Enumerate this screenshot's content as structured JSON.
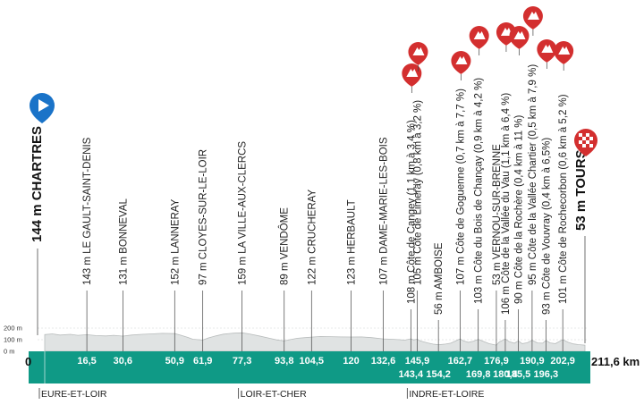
{
  "chart_data": {
    "type": "area",
    "total_distance_label": "211,6 km",
    "zero_label": "0",
    "elevation_ticks": [
      {
        "value": 200,
        "label": "200 m"
      },
      {
        "value": 100,
        "label": "100 m"
      },
      {
        "value": 0,
        "label": "0 m"
      }
    ],
    "distance_max": 211.6,
    "elevation_max": 200,
    "start": {
      "label": "144 m CHARTRES",
      "km": 0,
      "icon": "start-play-icon",
      "color": "#1a73c8"
    },
    "finish": {
      "label": "53 m TOURS",
      "km": 211.6,
      "icon": "finish-checkered-icon",
      "color": "#d32f2f"
    },
    "waypoints": [
      {
        "km": 16.5,
        "km_label": "16,5",
        "label": "143 m LE GAULT-SAINT-DENIS",
        "row": 0
      },
      {
        "km": 30.6,
        "km_label": "30,6",
        "label": "131 m BONNEVAL",
        "row": 0
      },
      {
        "km": 50.9,
        "km_label": "50,9",
        "label": "152 m LANNERAY",
        "row": 0
      },
      {
        "km": 61.9,
        "km_label": "61,9",
        "label": "97 m CLOYES-SUR-LE-LOIR",
        "row": 0
      },
      {
        "km": 77.3,
        "km_label": "77,3",
        "label": "159 m LA VILLE-AUX-CLERCS",
        "row": 0
      },
      {
        "km": 93.8,
        "km_label": "93,8",
        "label": "89 m VENDÔME",
        "row": 0
      },
      {
        "km": 104.5,
        "km_label": "104,5",
        "label": "122 m CRUCHERAY",
        "row": 0
      },
      {
        "km": 120,
        "km_label": "120",
        "label": "123 m HERBAULT",
        "row": 0
      },
      {
        "km": 132.6,
        "km_label": "132,6",
        "label": "107 m DAME-MARIE-LES-BOIS",
        "row": 0
      },
      {
        "km": 143.4,
        "km_label": "143,4",
        "label": "108 m Côte de Cangey (1,1 km à 3,4 %)",
        "row": 1,
        "climb": true
      },
      {
        "km": 145.9,
        "km_label": "145,9",
        "label": "105 m Côte de Limeray (0,8 km à 3,2 %)",
        "row": 0,
        "climb": true
      },
      {
        "km": 154.2,
        "km_label": "154,2",
        "label": "56 m AMBOISE",
        "row": 2
      },
      {
        "km": 162.7,
        "km_label": "162,7",
        "label": "107 m Côte de Goguenne (0,7 km à 7,7 %)",
        "row": 0,
        "climb": true
      },
      {
        "km": 169.8,
        "km_label": "169,8",
        "label": "103 m Côte du Bois de Chançay (0,9 km à 4,2 %)",
        "row": 1,
        "climb": true
      },
      {
        "km": 176.9,
        "km_label": "176,9",
        "label": "53 m VERNOU-SUR-BRENNE",
        "row": 0
      },
      {
        "km": 180.4,
        "km_label": "180,4",
        "label": "106 m Côte de la Vallée du Vau (1,1 km à 6,4 %)",
        "row": 2,
        "climb": true
      },
      {
        "km": 185.5,
        "km_label": "185,5",
        "label": "90 m Côte de la Rochère (0,4 km à 11 %)",
        "row": 1,
        "climb": true
      },
      {
        "km": 190.9,
        "km_label": "190,9",
        "label": "95 m Côte de la Vallée Chartier (0,5 km à 7,9 %)",
        "row": 0,
        "climb": true
      },
      {
        "km": 196.3,
        "km_label": "196,3",
        "label": "93 m Côte de Vouvray (0,4 km à 6,5%)",
        "row": 2,
        "climb": true
      },
      {
        "km": 202.9,
        "km_label": "202,9",
        "label": "101 m Côte de Rochecorbon (0,6 km à 5,2 %)",
        "row": 1,
        "climb": true
      }
    ],
    "regions": [
      {
        "km": 0,
        "label": "EURE-ET-LOIR"
      },
      {
        "km": 77.3,
        "label": "LOIR-ET-CHER"
      },
      {
        "km": 143.4,
        "label": "INDRE-ET-LOIRE"
      }
    ],
    "profile": [
      [
        0,
        144
      ],
      [
        3,
        150
      ],
      [
        6,
        140
      ],
      [
        10,
        146
      ],
      [
        13,
        138
      ],
      [
        16.5,
        143
      ],
      [
        20,
        135
      ],
      [
        24,
        132
      ],
      [
        27,
        138
      ],
      [
        30.6,
        131
      ],
      [
        34,
        140
      ],
      [
        38,
        146
      ],
      [
        42,
        150
      ],
      [
        46,
        155
      ],
      [
        50.9,
        152
      ],
      [
        53,
        140
      ],
      [
        56,
        120
      ],
      [
        58,
        104
      ],
      [
        61.9,
        97
      ],
      [
        64,
        115
      ],
      [
        67,
        132
      ],
      [
        70,
        148
      ],
      [
        74,
        156
      ],
      [
        77.3,
        159
      ],
      [
        80,
        150
      ],
      [
        84,
        132
      ],
      [
        88,
        112
      ],
      [
        91,
        98
      ],
      [
        93.8,
        89
      ],
      [
        96,
        100
      ],
      [
        99,
        112
      ],
      [
        102,
        118
      ],
      [
        104.5,
        122
      ],
      [
        108,
        128
      ],
      [
        112,
        126
      ],
      [
        116,
        124
      ],
      [
        120,
        123
      ],
      [
        124,
        124
      ],
      [
        128,
        118
      ],
      [
        132.6,
        107
      ],
      [
        136,
        104
      ],
      [
        139,
        100
      ],
      [
        141,
        96
      ],
      [
        143.4,
        108
      ],
      [
        144.5,
        98
      ],
      [
        145.9,
        105
      ],
      [
        147,
        90
      ],
      [
        150,
        72
      ],
      [
        152,
        62
      ],
      [
        154.2,
        56
      ],
      [
        157,
        62
      ],
      [
        159,
        70
      ],
      [
        161,
        90
      ],
      [
        162.7,
        107
      ],
      [
        164,
        90
      ],
      [
        166,
        78
      ],
      [
        168,
        88
      ],
      [
        169.8,
        103
      ],
      [
        172,
        84
      ],
      [
        174,
        66
      ],
      [
        176.9,
        53
      ],
      [
        178,
        80
      ],
      [
        180.4,
        106
      ],
      [
        182,
        82
      ],
      [
        184,
        70
      ],
      [
        185.5,
        90
      ],
      [
        187,
        66
      ],
      [
        189,
        74
      ],
      [
        190.9,
        95
      ],
      [
        193,
        72
      ],
      [
        195,
        70
      ],
      [
        196.3,
        93
      ],
      [
        198,
        72
      ],
      [
        200,
        66
      ],
      [
        202.9,
        101
      ],
      [
        205,
        78
      ],
      [
        207,
        64
      ],
      [
        209,
        58
      ],
      [
        211.6,
        53
      ]
    ],
    "colors": {
      "band": "#0f9a86",
      "climb_icon": "#d32f2f",
      "start_icon": "#1a73c8",
      "finish_icon": "#d32f2f",
      "profile_fill": "#e0e3e3",
      "profile_line": "#b8bcbc"
    }
  }
}
